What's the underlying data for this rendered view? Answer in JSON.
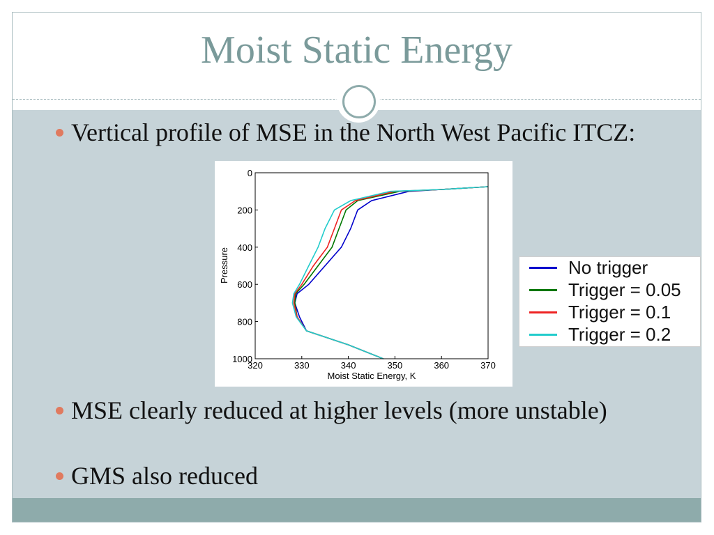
{
  "slide": {
    "title": "Moist Static Energy",
    "bullets": [
      "Vertical profile of MSE in the North West Pacific ITCZ:",
      "MSE clearly reduced at higher levels (more unstable)",
      "GMS also reduced"
    ]
  },
  "colors": {
    "title": "#7a9a9a",
    "body_band": "#c6d3d8",
    "footer_band": "#8eabab",
    "bullet_dot": "#e07a5f"
  },
  "chart_data": {
    "type": "line",
    "xlabel": "Moist Static Energy, K",
    "ylabel": "Pressure",
    "xlim": [
      320,
      370
    ],
    "ylim": [
      0,
      1000
    ],
    "y_inverted": true,
    "xticks": [
      320,
      330,
      340,
      350,
      360,
      370
    ],
    "yticks": [
      0,
      200,
      400,
      600,
      800,
      1000
    ],
    "legend_position": "right-outside",
    "series": [
      {
        "name": "No trigger",
        "color": "#0000cc",
        "x": [
          347.5,
          340,
          331,
          329.5,
          328.5,
          329,
          331.5,
          335,
          338.5,
          340.5,
          342,
          345,
          353,
          360,
          370
        ],
        "y": [
          1000,
          925,
          850,
          775,
          700,
          650,
          600,
          500,
          400,
          300,
          200,
          150,
          100,
          90,
          75
        ]
      },
      {
        "name": "Trigger = 0.05",
        "color": "#007700",
        "x": [
          347.5,
          340,
          331,
          329,
          328.5,
          328.7,
          330.5,
          333.5,
          336.5,
          338,
          339.5,
          342,
          351,
          360,
          370
        ],
        "y": [
          1000,
          925,
          850,
          775,
          700,
          650,
          600,
          500,
          400,
          300,
          200,
          150,
          100,
          90,
          75
        ]
      },
      {
        "name": "Trigger = 0.1",
        "color": "#ee2222",
        "x": [
          347.5,
          340,
          331,
          329,
          328.3,
          328.5,
          330,
          332.5,
          335.5,
          337,
          338.5,
          341.5,
          350,
          360,
          370
        ],
        "y": [
          1000,
          925,
          850,
          775,
          700,
          650,
          600,
          500,
          400,
          300,
          200,
          150,
          100,
          90,
          75
        ]
      },
      {
        "name": "Trigger = 0.2",
        "color": "#22cccc",
        "x": [
          347.5,
          340,
          331,
          328.8,
          328,
          328.3,
          329.5,
          331.5,
          333.5,
          335,
          337,
          340.5,
          349,
          360,
          370
        ],
        "y": [
          1000,
          925,
          850,
          775,
          700,
          650,
          600,
          500,
          400,
          300,
          200,
          150,
          100,
          90,
          75
        ]
      }
    ]
  }
}
